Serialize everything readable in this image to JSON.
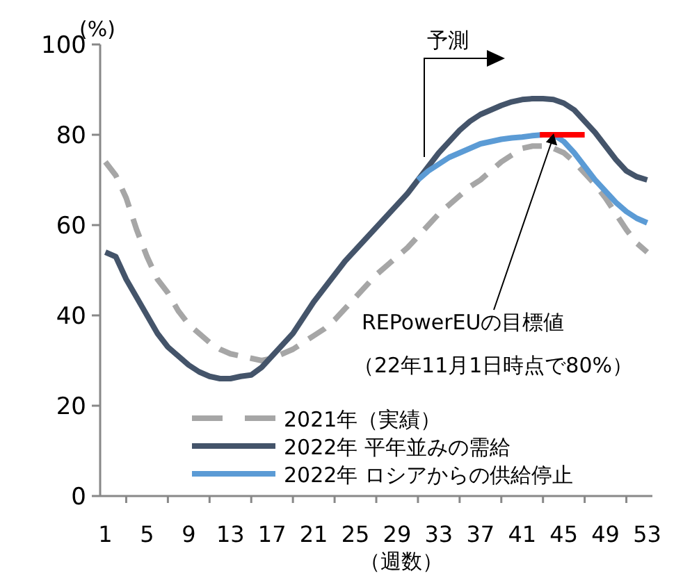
{
  "chart_data": {
    "type": "line",
    "xlabel": "（週数）",
    "ylabel": "(%)",
    "xlim": [
      0.5,
      53.5
    ],
    "ylim": [
      0,
      100
    ],
    "xticks": [
      1,
      {
        "value": 3,
        "label": null
      },
      5,
      {
        "value": 7,
        "label": null
      },
      9,
      {
        "value": 11,
        "label": null
      },
      13,
      {
        "value": 15,
        "label": null
      },
      17,
      {
        "value": 19,
        "label": null
      },
      21,
      {
        "value": 23,
        "label": null
      },
      25,
      {
        "value": 27,
        "label": null
      },
      29,
      {
        "value": 31,
        "label": null
      },
      33,
      {
        "value": 35,
        "label": null
      },
      37,
      {
        "value": 39,
        "label": null
      },
      41,
      {
        "value": 43,
        "label": null
      },
      45,
      {
        "value": 47,
        "label": null
      },
      49,
      {
        "value": 51,
        "label": null
      },
      53
    ],
    "yticks": [
      0,
      20,
      40,
      60,
      80,
      100
    ],
    "grid": false,
    "legend": "bottom right",
    "marker": "none",
    "x": [
      1,
      2,
      3,
      4,
      5,
      6,
      7,
      8,
      9,
      10,
      11,
      12,
      13,
      14,
      15,
      16,
      17,
      18,
      19,
      20,
      21,
      22,
      23,
      24,
      25,
      26,
      27,
      28,
      29,
      30,
      31,
      32,
      33,
      34,
      35,
      36,
      37,
      38,
      39,
      40,
      41,
      42,
      43,
      44,
      45,
      46,
      47,
      48,
      49,
      50,
      51,
      52,
      53
    ],
    "series": [
      {
        "name": "2021年（実績）",
        "color": "#a6a6a6",
        "line_style": "dashed",
        "values": [
          74,
          71,
          66,
          59,
          53,
          48,
          45,
          41,
          38,
          36,
          34,
          32.5,
          31.5,
          31,
          30.5,
          30,
          30.5,
          31.5,
          32.5,
          34,
          35.5,
          37,
          39,
          41.5,
          44,
          46.5,
          49,
          51,
          53,
          55,
          57.5,
          60,
          62.5,
          64.5,
          66.5,
          68.5,
          70,
          72,
          74,
          75.5,
          77,
          77.5,
          77.5,
          77,
          76,
          74,
          71.5,
          69,
          66,
          62.5,
          59,
          56,
          54
        ]
      },
      {
        "name": "2022年 平年並みの需給",
        "color": "#44546a",
        "line_style": "solid",
        "values": [
          54,
          53,
          48,
          44,
          40,
          36,
          33,
          31,
          29,
          27.5,
          26.5,
          26,
          26,
          26.5,
          26.8,
          28.5,
          31,
          33.5,
          36,
          39.5,
          43,
          46,
          49,
          52,
          54.5,
          57,
          59.5,
          62,
          64.5,
          67,
          70,
          73,
          76,
          78.5,
          81,
          83,
          84.5,
          85.5,
          86.5,
          87.3,
          87.8,
          88,
          88,
          87.8,
          87,
          85.5,
          83,
          80.5,
          77.5,
          74.5,
          72,
          70.7,
          70
        ]
      },
      {
        "name": "2022年 ロシアからの供給停止",
        "color": "#5b9bd5",
        "line_style": "solid",
        "x": [
          31,
          32,
          33,
          34,
          35,
          36,
          37,
          38,
          39,
          40,
          41,
          42,
          43,
          44,
          45,
          46,
          47,
          48,
          49,
          50,
          51,
          52,
          53
        ],
        "values": [
          70,
          72,
          73.5,
          75,
          76,
          77,
          78,
          78.5,
          79,
          79.3,
          79.5,
          79.8,
          80,
          80,
          78.5,
          76,
          73,
          70,
          67.5,
          65,
          63,
          61.5,
          60.5
        ]
      },
      {
        "color": "#ff0000",
        "line_style": "solid",
        "x": [
          42.7,
          47
        ],
        "values": [
          80,
          80
        ]
      }
    ],
    "annotations": [
      "予測",
      {
        "text": "REPowerEUの目標値",
        "x": 44,
        "y": 80
      },
      "（22年11月1日時点で80%）"
    ]
  }
}
